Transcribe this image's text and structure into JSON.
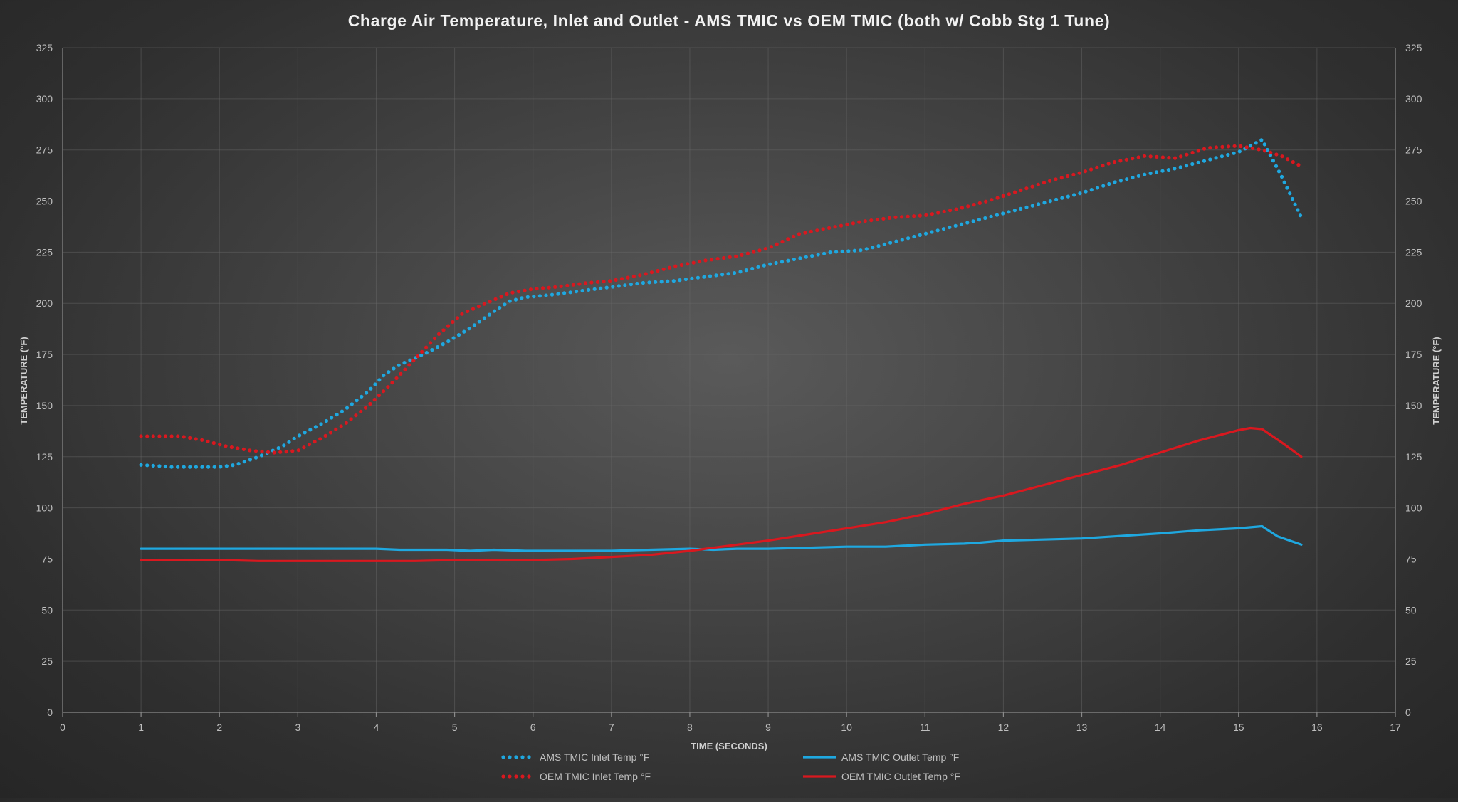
{
  "chart_data": {
    "type": "line",
    "title": "Charge Air Temperature, Inlet and Outlet - AMS TMIC vs OEM TMIC (both w/ Cobb Stg 1 Tune)",
    "xlabel": "TIME (SECONDS)",
    "ylabel_left": "TEMPERATURE (°F)",
    "ylabel_right": "TEMPERATURE (°F)",
    "xlim": [
      0,
      17
    ],
    "ylim": [
      0,
      325
    ],
    "x_ticks": [
      "0",
      "1",
      "2",
      "3",
      "4",
      "5",
      "6",
      "7",
      "8",
      "9",
      "10",
      "11",
      "12",
      "13",
      "14",
      "15",
      "16",
      "17"
    ],
    "y_ticks": [
      "0",
      "25",
      "50",
      "75",
      "100",
      "125",
      "150",
      "175",
      "200",
      "225",
      "250",
      "275",
      "300",
      "325"
    ],
    "grid": true,
    "legend_position": "bottom",
    "series": [
      {
        "name": "AMS TMIC Inlet Temp °F",
        "color": "#1fa8e0",
        "style": "dotted",
        "x": [
          1.0,
          1.4,
          1.8,
          2.0,
          2.2,
          2.5,
          2.8,
          3.0,
          3.3,
          3.6,
          3.9,
          4.1,
          4.3,
          4.6,
          4.9,
          5.2,
          5.5,
          5.7,
          5.9,
          6.2,
          6.6,
          7.0,
          7.4,
          7.8,
          8.2,
          8.6,
          9.0,
          9.4,
          9.8,
          10.2,
          10.6,
          11.0,
          11.4,
          11.8,
          12.2,
          12.6,
          13.0,
          13.4,
          13.8,
          14.2,
          14.6,
          15.0,
          15.3,
          15.55,
          15.8
        ],
        "y": [
          121,
          120,
          120,
          120,
          121,
          125,
          130,
          135,
          141,
          148,
          157,
          165,
          170,
          175,
          181,
          188,
          196,
          201,
          203,
          204,
          206,
          208,
          210,
          211,
          213,
          215,
          219,
          222,
          225,
          226,
          230,
          234,
          238,
          242,
          246,
          250,
          254,
          259,
          263,
          266,
          270,
          274,
          280,
          262,
          242
        ]
      },
      {
        "name": "AMS TMIC Outlet Temp °F",
        "color": "#1fa8e0",
        "style": "solid",
        "x": [
          1.0,
          2.0,
          3.0,
          4.0,
          4.3,
          4.9,
          5.2,
          5.5,
          5.9,
          6.5,
          7.0,
          7.5,
          8.0,
          8.3,
          8.6,
          9.0,
          9.5,
          10.0,
          10.5,
          11.0,
          11.5,
          11.7,
          12.0,
          12.5,
          13.0,
          13.4,
          14.0,
          14.5,
          15.0,
          15.3,
          15.5,
          15.8
        ],
        "y": [
          80,
          80,
          80,
          80,
          79.5,
          79.5,
          79,
          79.5,
          79,
          79,
          79,
          79.5,
          80,
          79.5,
          80,
          80,
          80.5,
          81,
          81,
          82,
          82.5,
          83,
          84,
          84.5,
          85,
          86,
          87.5,
          89,
          90,
          91,
          86,
          82
        ]
      },
      {
        "name": "OEM TMIC Inlet Temp °F",
        "color": "#d9181f",
        "style": "dotted",
        "x": [
          1.0,
          1.5,
          1.8,
          2.1,
          2.4,
          2.7,
          3.0,
          3.3,
          3.6,
          3.9,
          4.2,
          4.5,
          4.8,
          5.1,
          5.4,
          5.7,
          6.0,
          6.3,
          6.7,
          7.0,
          7.4,
          7.8,
          8.2,
          8.6,
          9.0,
          9.4,
          9.8,
          10.2,
          10.6,
          11.0,
          11.4,
          11.8,
          12.2,
          12.6,
          13.0,
          13.4,
          13.8,
          14.2,
          14.6,
          15.0,
          15.3,
          15.55,
          15.8
        ],
        "y": [
          135,
          135,
          133,
          130,
          128,
          127,
          128,
          134,
          141,
          150,
          161,
          173,
          185,
          195,
          200,
          205,
          207,
          208,
          210,
          211,
          214,
          218,
          221,
          223,
          227,
          234,
          237,
          240,
          242,
          243,
          246,
          250,
          255,
          260,
          264,
          269,
          272,
          271,
          276,
          277,
          275,
          272,
          267
        ]
      },
      {
        "name": "OEM TMIC Outlet Temp °F",
        "color": "#d9181f",
        "style": "solid",
        "x": [
          1.0,
          2.0,
          2.5,
          3.0,
          4.0,
          4.5,
          5.0,
          5.5,
          6.0,
          6.5,
          7.0,
          7.5,
          8.0,
          8.5,
          9.0,
          9.5,
          10.0,
          10.5,
          11.0,
          11.5,
          12.0,
          12.5,
          13.0,
          13.5,
          14.0,
          14.5,
          15.0,
          15.15,
          15.3,
          15.55,
          15.8
        ],
        "y": [
          74.5,
          74.5,
          74,
          74,
          74,
          74,
          74.5,
          74.5,
          74.5,
          75,
          76,
          77,
          79,
          81.5,
          84,
          87,
          90,
          93,
          97,
          102,
          106,
          111,
          116,
          121,
          127,
          133,
          138,
          139,
          138.5,
          132,
          125
        ]
      }
    ]
  }
}
